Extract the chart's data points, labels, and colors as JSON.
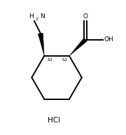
{
  "background": "#ffffff",
  "ring_color": "#000000",
  "line_width": 1.4,
  "text_color": "#000000",
  "hcl_text": "HCl",
  "h2n_text": "H2N",
  "oh_text": "OH",
  "o_text": "O",
  "stereo1": "&1",
  "stereo2": "&1",
  "fig_width": 1.8,
  "fig_height": 1.93,
  "dpi": 100
}
